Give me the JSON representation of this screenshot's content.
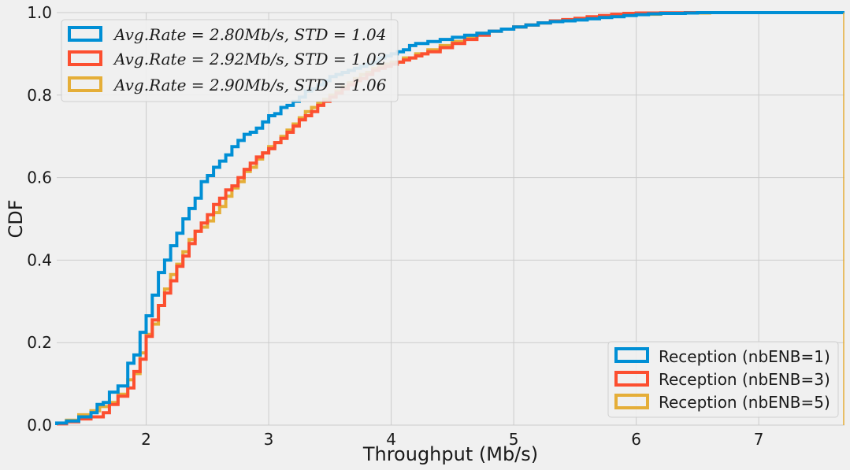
{
  "chart_data": {
    "type": "line",
    "xlabel": "Throughput (Mb/s)",
    "ylabel": "CDF",
    "xlim": [
      1.27,
      7.7
    ],
    "ylim": [
      0,
      1.0
    ],
    "xticks": [
      "2",
      "3",
      "4",
      "5",
      "6",
      "7"
    ],
    "xtick_values": [
      2,
      3,
      4,
      5,
      6,
      7
    ],
    "yticks": [
      "0.0",
      "0.2",
      "0.4",
      "0.6",
      "0.8",
      "1.0"
    ],
    "ytick_values": [
      0,
      0.2,
      0.4,
      0.6,
      0.8,
      1.0
    ],
    "grid": true,
    "legend_stats_location": "upper-left",
    "legend_series_location": "lower-right",
    "series": [
      {
        "name": "Reception (nbENB=1)",
        "stat_label": "Avg.Rate = 2.80Mb/s,    STD = 1.04",
        "color": "#008fd5",
        "x": [
          1.27,
          1.35,
          1.45,
          1.55,
          1.6,
          1.65,
          1.7,
          1.77,
          1.85,
          1.9,
          1.95,
          2.0,
          2.05,
          2.1,
          2.15,
          2.2,
          2.25,
          2.3,
          2.35,
          2.4,
          2.45,
          2.5,
          2.55,
          2.6,
          2.65,
          2.7,
          2.75,
          2.8,
          2.85,
          2.9,
          2.95,
          3.0,
          3.05,
          3.1,
          3.15,
          3.2,
          3.25,
          3.3,
          3.35,
          3.4,
          3.45,
          3.5,
          3.55,
          3.6,
          3.65,
          3.7,
          3.75,
          3.8,
          3.85,
          3.9,
          3.95,
          4.0,
          4.05,
          4.1,
          4.15,
          4.2,
          4.3,
          4.4,
          4.5,
          4.6,
          4.7,
          4.8,
          4.9,
          5.0,
          5.1,
          5.2,
          5.3,
          5.4,
          5.5,
          5.6,
          5.7,
          5.8,
          5.9,
          6.0,
          6.1,
          6.2,
          6.4,
          6.5
        ],
        "y": [
          0.005,
          0.01,
          0.02,
          0.03,
          0.05,
          0.055,
          0.08,
          0.095,
          0.15,
          0.17,
          0.225,
          0.265,
          0.315,
          0.37,
          0.4,
          0.435,
          0.465,
          0.5,
          0.525,
          0.55,
          0.59,
          0.605,
          0.625,
          0.64,
          0.655,
          0.675,
          0.69,
          0.705,
          0.71,
          0.72,
          0.735,
          0.75,
          0.755,
          0.77,
          0.775,
          0.785,
          0.795,
          0.81,
          0.815,
          0.825,
          0.835,
          0.845,
          0.85,
          0.855,
          0.86,
          0.865,
          0.87,
          0.875,
          0.88,
          0.89,
          0.895,
          0.9,
          0.905,
          0.91,
          0.92,
          0.925,
          0.93,
          0.935,
          0.94,
          0.945,
          0.95,
          0.955,
          0.96,
          0.965,
          0.97,
          0.975,
          0.978,
          0.98,
          0.982,
          0.985,
          0.988,
          0.99,
          0.993,
          0.995,
          0.997,
          0.998,
          0.999,
          1.0
        ]
      },
      {
        "name": "Reception (nbENB=3)",
        "stat_label": "Avg.Rate = 2.92Mb/s,    STD = 1.02",
        "color": "#fc4f30",
        "x": [
          1.27,
          1.35,
          1.45,
          1.55,
          1.65,
          1.7,
          1.77,
          1.85,
          1.9,
          1.95,
          2.0,
          2.05,
          2.1,
          2.15,
          2.2,
          2.25,
          2.3,
          2.35,
          2.4,
          2.45,
          2.5,
          2.55,
          2.6,
          2.65,
          2.7,
          2.75,
          2.8,
          2.85,
          2.9,
          2.95,
          3.0,
          3.05,
          3.1,
          3.15,
          3.2,
          3.25,
          3.3,
          3.35,
          3.4,
          3.45,
          3.5,
          3.55,
          3.6,
          3.65,
          3.7,
          3.75,
          3.8,
          3.85,
          3.9,
          3.95,
          4.0,
          4.05,
          4.1,
          4.15,
          4.2,
          4.25,
          4.3,
          4.4,
          4.5,
          4.6,
          4.7,
          4.8,
          4.9,
          5.0,
          5.1,
          5.2,
          5.3,
          5.4,
          5.5,
          5.6,
          5.7,
          5.8,
          5.9,
          6.0,
          6.2,
          6.4,
          6.5
        ],
        "y": [
          0.003,
          0.008,
          0.015,
          0.02,
          0.03,
          0.05,
          0.07,
          0.09,
          0.13,
          0.16,
          0.215,
          0.255,
          0.29,
          0.32,
          0.35,
          0.385,
          0.41,
          0.44,
          0.47,
          0.49,
          0.51,
          0.535,
          0.55,
          0.57,
          0.58,
          0.6,
          0.62,
          0.635,
          0.65,
          0.66,
          0.67,
          0.685,
          0.695,
          0.71,
          0.725,
          0.74,
          0.75,
          0.76,
          0.775,
          0.785,
          0.795,
          0.805,
          0.815,
          0.825,
          0.835,
          0.84,
          0.85,
          0.86,
          0.865,
          0.87,
          0.875,
          0.88,
          0.885,
          0.89,
          0.895,
          0.9,
          0.905,
          0.915,
          0.925,
          0.935,
          0.945,
          0.955,
          0.96,
          0.965,
          0.97,
          0.975,
          0.98,
          0.983,
          0.986,
          0.99,
          0.993,
          0.996,
          0.998,
          0.999,
          0.9995,
          1.0,
          1.0
        ]
      },
      {
        "name": "Reception (nbENB=5)",
        "stat_label": "Avg.Rate = 2.90Mb/s,    STD = 1.06",
        "color": "#e5ae38",
        "x": [
          1.27,
          1.35,
          1.45,
          1.55,
          1.62,
          1.7,
          1.77,
          1.85,
          1.9,
          1.95,
          2.0,
          2.05,
          2.1,
          2.15,
          2.2,
          2.25,
          2.3,
          2.35,
          2.4,
          2.45,
          2.5,
          2.55,
          2.6,
          2.65,
          2.7,
          2.75,
          2.8,
          2.85,
          2.9,
          2.95,
          3.0,
          3.05,
          3.1,
          3.15,
          3.2,
          3.25,
          3.3,
          3.35,
          3.4,
          3.45,
          3.5,
          3.55,
          3.6,
          3.65,
          3.7,
          3.75,
          3.8,
          3.85,
          3.9,
          3.95,
          4.0,
          4.1,
          4.2,
          4.3,
          4.4,
          4.5,
          4.6,
          4.7,
          4.8,
          4.9,
          5.0,
          5.1,
          5.2,
          5.3,
          5.4,
          5.5,
          5.6,
          5.7,
          5.8,
          5.9,
          6.0,
          6.2,
          6.4,
          6.6,
          6.88
        ],
        "y": [
          0.004,
          0.012,
          0.025,
          0.035,
          0.045,
          0.055,
          0.075,
          0.11,
          0.125,
          0.175,
          0.22,
          0.245,
          0.29,
          0.33,
          0.365,
          0.39,
          0.42,
          0.45,
          0.47,
          0.48,
          0.495,
          0.515,
          0.53,
          0.555,
          0.575,
          0.59,
          0.615,
          0.625,
          0.645,
          0.66,
          0.675,
          0.685,
          0.7,
          0.715,
          0.73,
          0.745,
          0.76,
          0.77,
          0.78,
          0.79,
          0.8,
          0.81,
          0.82,
          0.83,
          0.84,
          0.85,
          0.855,
          0.865,
          0.87,
          0.875,
          0.88,
          0.89,
          0.9,
          0.91,
          0.92,
          0.93,
          0.94,
          0.95,
          0.955,
          0.96,
          0.965,
          0.97,
          0.975,
          0.978,
          0.981,
          0.984,
          0.987,
          0.99,
          0.992,
          0.994,
          0.996,
          0.998,
          0.999,
          1.0,
          1.0
        ]
      }
    ]
  }
}
